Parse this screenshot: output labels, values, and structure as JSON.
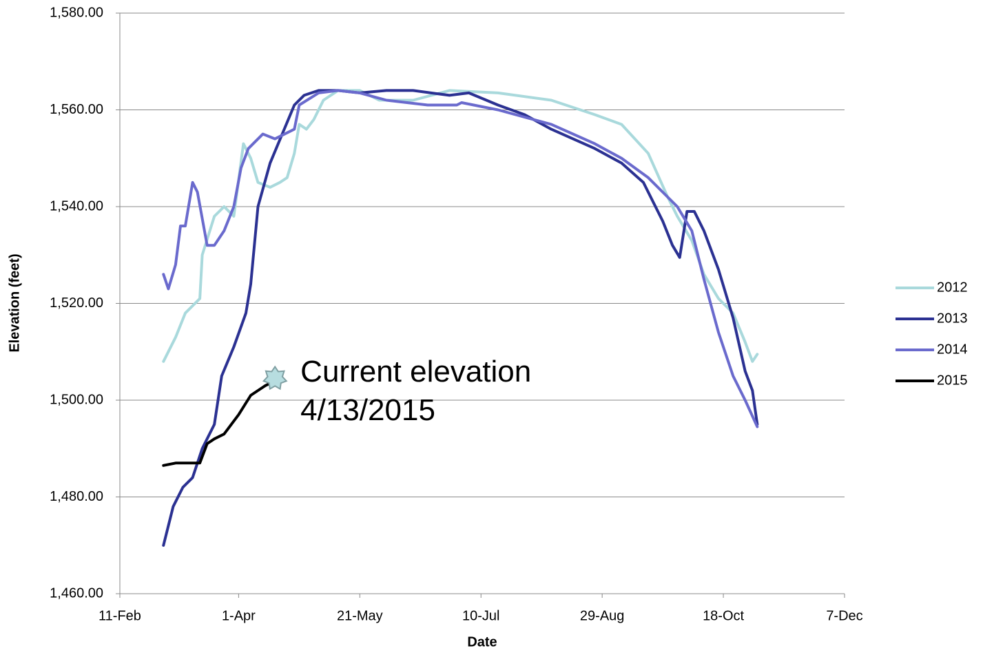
{
  "chart_data": {
    "type": "line",
    "x_label": "Date",
    "y_label": "Elevation (feet)",
    "xlim": [
      42,
      341
    ],
    "xticks": [
      {
        "value": 42,
        "label": "11-Feb"
      },
      {
        "value": 91,
        "label": "1-Apr"
      },
      {
        "value": 141,
        "label": "21-May"
      },
      {
        "value": 191,
        "label": "10-Jul"
      },
      {
        "value": 241,
        "label": "29-Aug"
      },
      {
        "value": 291,
        "label": "18-Oct"
      },
      {
        "value": 341,
        "label": "7-Dec"
      }
    ],
    "ylim": [
      1460,
      1580
    ],
    "yticks": [
      {
        "value": 1460,
        "label": "1,460.00"
      },
      {
        "value": 1480,
        "label": "1,480.00"
      },
      {
        "value": 1500,
        "label": "1,500.00"
      },
      {
        "value": 1520,
        "label": "1,520.00"
      },
      {
        "value": 1540,
        "label": "1,540.00"
      },
      {
        "value": 1560,
        "label": "1,560.00"
      },
      {
        "value": 1580,
        "label": "1,580.00"
      }
    ],
    "grid": true,
    "legend": "right",
    "series": [
      {
        "name": "2012",
        "color": "#a9d9dc",
        "x": [
          60,
          65,
          69,
          75,
          76,
          81,
          85,
          89,
          93,
          96,
          99,
          104,
          108,
          111,
          114,
          116,
          119,
          122,
          126,
          132,
          141,
          149,
          163,
          178,
          198,
          220,
          238,
          249,
          260,
          268,
          272,
          278,
          283,
          289,
          295,
          300,
          303,
          305
        ],
        "values": [
          1508,
          1513,
          1518,
          1521,
          1530,
          1538,
          1540,
          1538,
          1553,
          1550,
          1545,
          1544,
          1545,
          1546,
          1551,
          1557,
          1556,
          1558,
          1562,
          1564,
          1564,
          1562,
          1562,
          1564,
          1563.5,
          1562,
          1559,
          1557,
          1551,
          1542,
          1538,
          1533,
          1526,
          1521,
          1518,
          1512,
          1508,
          1509.5
        ]
      },
      {
        "name": "2013",
        "color": "#2b3192",
        "x": [
          60,
          64,
          68,
          72,
          76,
          81,
          84,
          89,
          94,
          96,
          99,
          104,
          109,
          114,
          118,
          124,
          132,
          141,
          152,
          163,
          178,
          186,
          198,
          209,
          220,
          238,
          249,
          258,
          266,
          270,
          273,
          276,
          279,
          283,
          289,
          295,
          300,
          303,
          305
        ],
        "values": [
          1470,
          1478,
          1482,
          1484,
          1490,
          1495,
          1505,
          1511,
          1518,
          1524,
          1540,
          1549,
          1555,
          1561,
          1563,
          1564,
          1564,
          1563.5,
          1564,
          1564,
          1563,
          1563.5,
          1561,
          1559,
          1556,
          1552,
          1549,
          1545,
          1537,
          1532,
          1529.5,
          1539,
          1539,
          1535,
          1527,
          1517,
          1506,
          1502,
          1495
        ]
      },
      {
        "name": "2014",
        "color": "#6a6acd",
        "x": [
          60,
          62,
          65,
          67,
          69,
          72,
          74,
          78,
          81,
          85,
          89,
          92,
          95,
          101,
          106,
          114,
          116,
          124,
          132,
          141,
          152,
          169,
          181,
          183,
          198,
          220,
          238,
          249,
          260,
          272,
          278,
          283,
          289,
          295,
          300,
          305
        ],
        "values": [
          1526,
          1523,
          1528,
          1536,
          1536,
          1545,
          1543,
          1532,
          1532,
          1535,
          1540,
          1548,
          1552,
          1555,
          1554,
          1556,
          1561,
          1563.5,
          1564,
          1563.5,
          1562,
          1561,
          1561,
          1561.5,
          1560,
          1557,
          1553,
          1550,
          1546,
          1540,
          1535,
          1525,
          1514,
          1505,
          1500,
          1494.5
        ]
      },
      {
        "name": "2015",
        "color": "#000000",
        "x": [
          60,
          65,
          69,
          75,
          78,
          81,
          85,
          91,
          96,
          102,
          106
        ],
        "values": [
          1486.5,
          1487,
          1487,
          1487,
          1491,
          1492,
          1493,
          1497,
          1501,
          1503,
          1504
        ]
      }
    ],
    "annotation": {
      "lines": [
        "Current elevation",
        "4/13/2015"
      ],
      "x": 106,
      "y": 1504.5
    }
  }
}
